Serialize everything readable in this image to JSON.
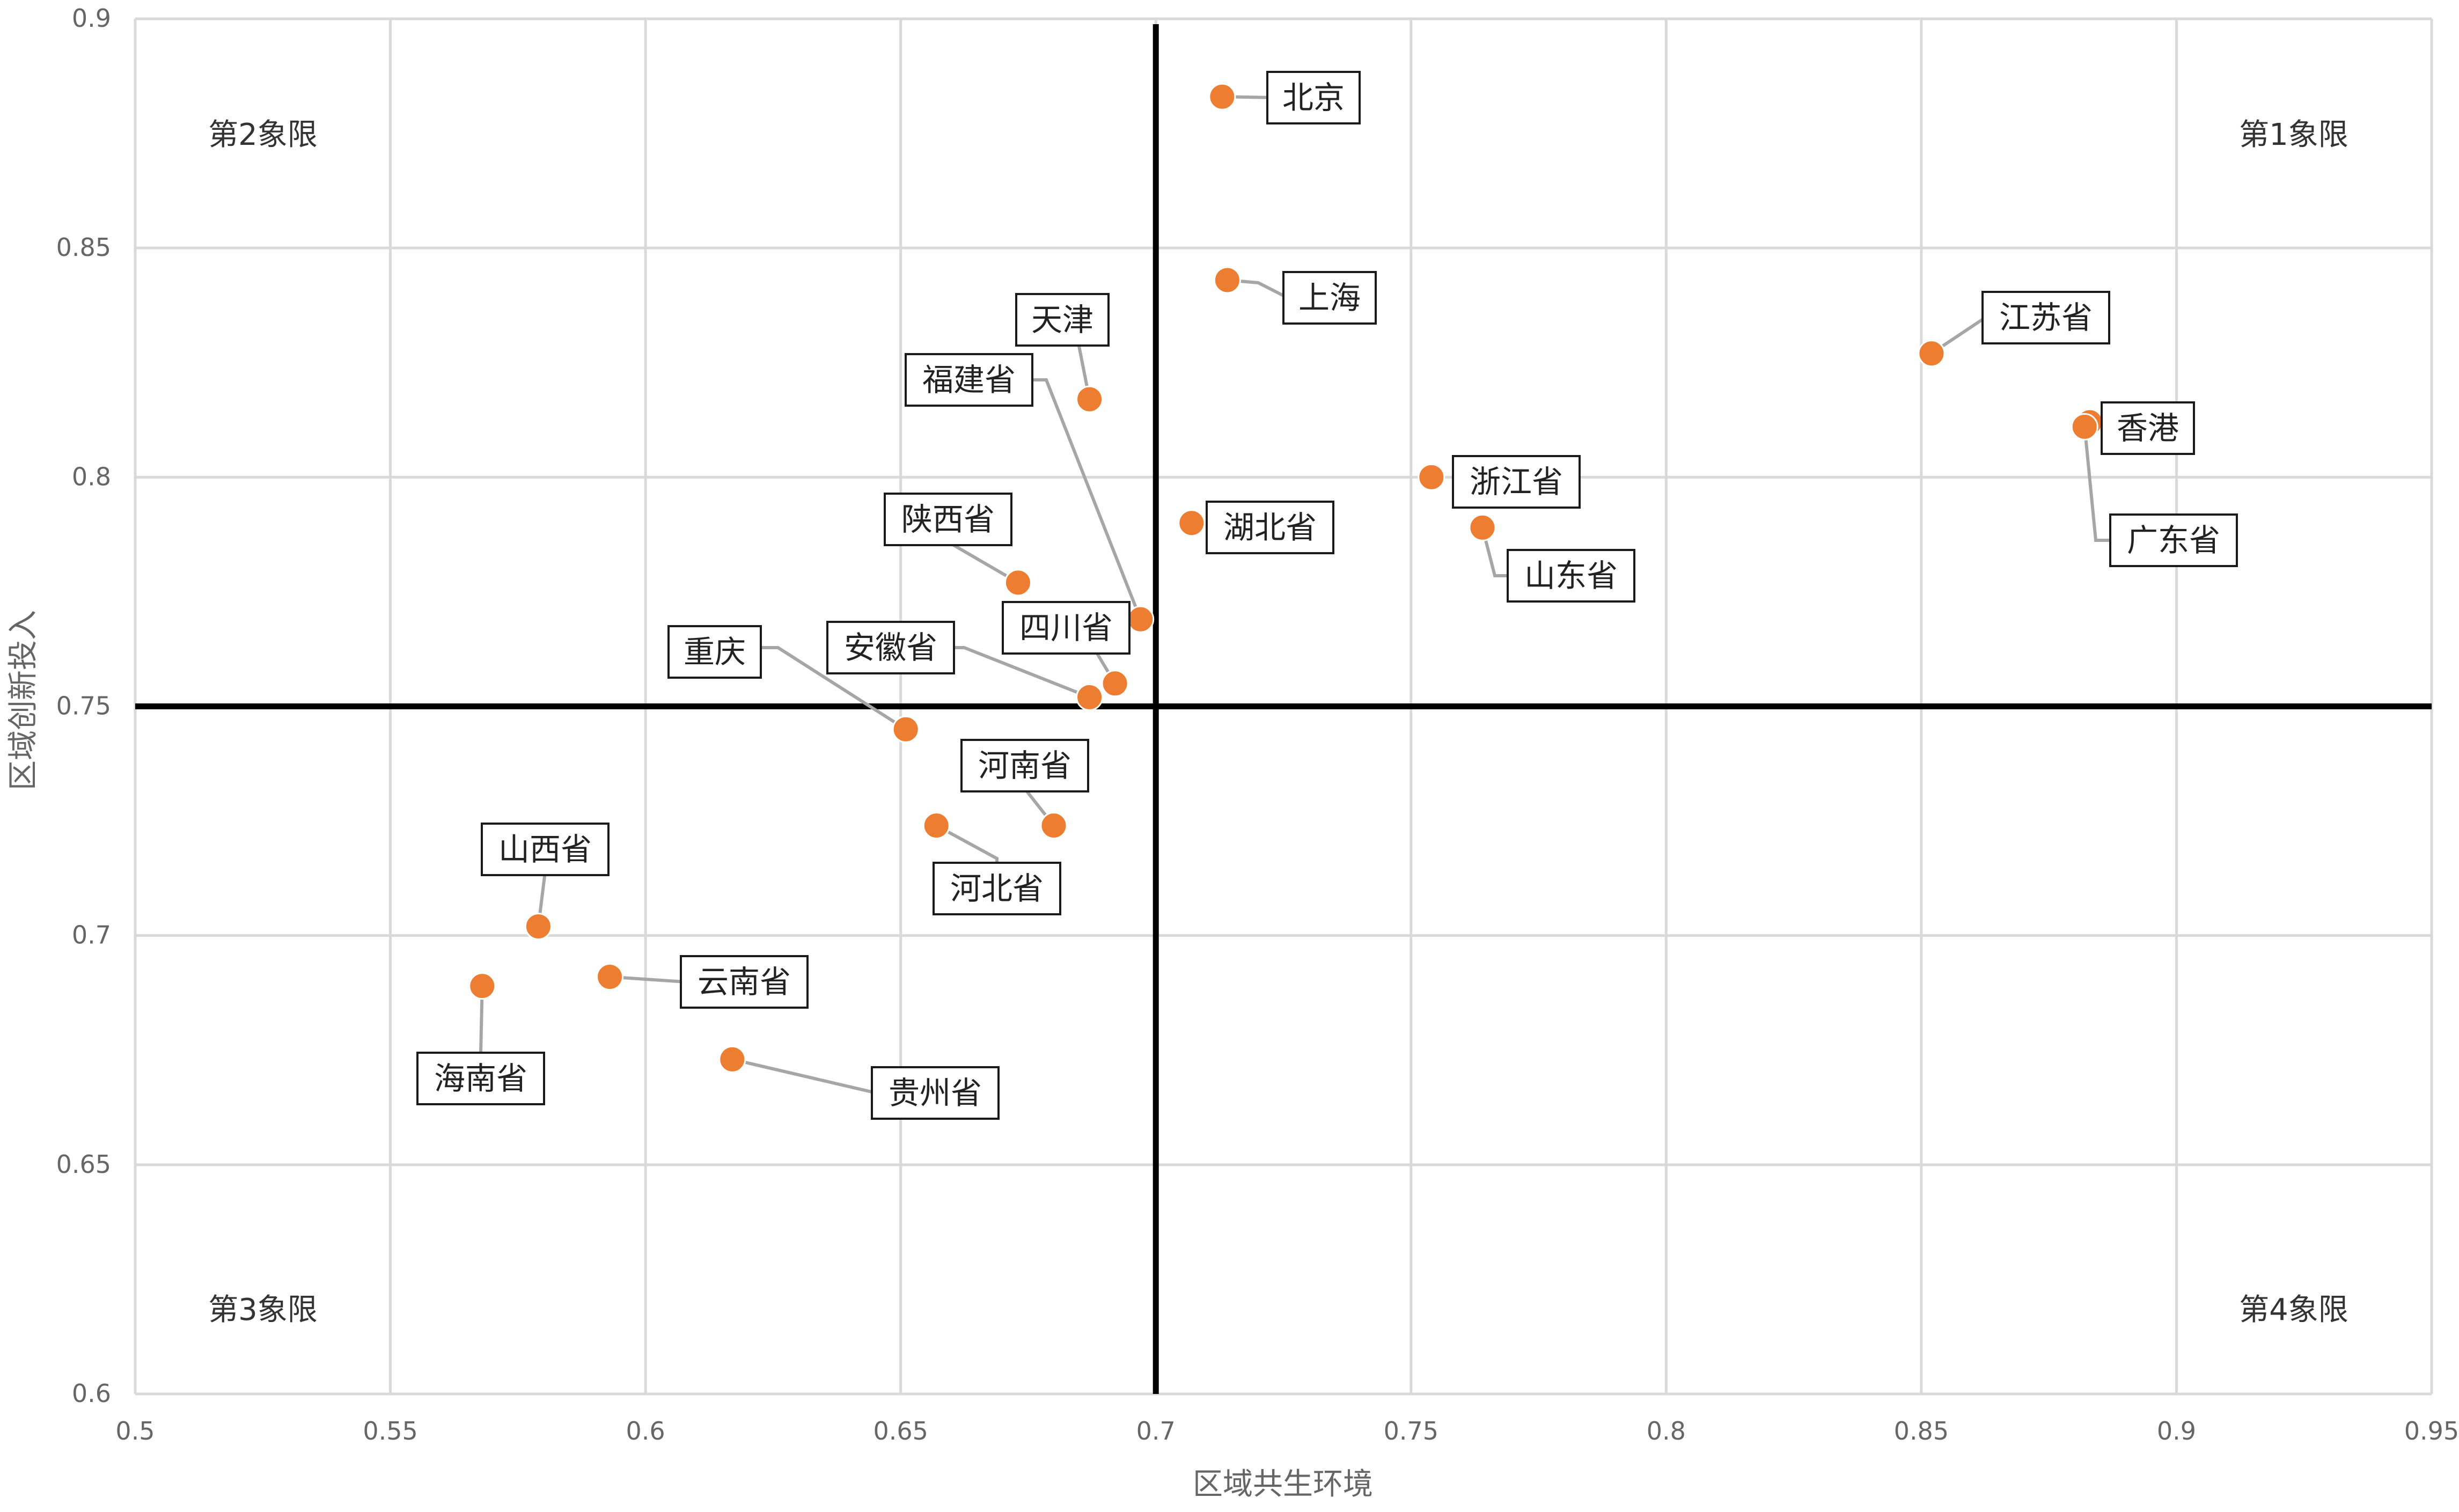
{
  "chart_data": {
    "type": "scatter",
    "title": "",
    "xlabel": "区域共生环境",
    "ylabel": "区域创新投入",
    "xlim": [
      0.5,
      0.95
    ],
    "ylim": [
      0.6,
      0.9
    ],
    "x_ticks": [
      "0.5",
      "0.55",
      "0.6",
      "0.65",
      "0.7",
      "0.75",
      "0.8",
      "0.85",
      "0.9",
      "0.95"
    ],
    "y_ticks": [
      "0.6",
      "0.65",
      "0.7",
      "0.75",
      "0.8",
      "0.85",
      "0.9"
    ],
    "grid": true,
    "divider": {
      "x": 0.7,
      "y": 0.75
    },
    "quadrants": [
      "第1象限",
      "第2象限",
      "第3象限",
      "第4象限"
    ],
    "marker_color": "#ED7D31",
    "leader_color": "#A6A6A6",
    "points": [
      {
        "label": "北京",
        "x": 0.713,
        "y": 0.883
      },
      {
        "label": "上海",
        "x": 0.714,
        "y": 0.843
      },
      {
        "label": "天津",
        "x": 0.687,
        "y": 0.817
      },
      {
        "label": "福建省",
        "x": 0.697,
        "y": 0.769
      },
      {
        "label": "陕西省",
        "x": 0.673,
        "y": 0.777
      },
      {
        "label": "四川省",
        "x": 0.692,
        "y": 0.755
      },
      {
        "label": "安徽省",
        "x": 0.687,
        "y": 0.752
      },
      {
        "label": "重庆",
        "x": 0.651,
        "y": 0.745
      },
      {
        "label": "湖北省",
        "x": 0.707,
        "y": 0.79
      },
      {
        "label": "浙江省",
        "x": 0.754,
        "y": 0.8
      },
      {
        "label": "山东省",
        "x": 0.764,
        "y": 0.789
      },
      {
        "label": "江苏省",
        "x": 0.852,
        "y": 0.827
      },
      {
        "label": "香港",
        "x": 0.883,
        "y": 0.812
      },
      {
        "label": "广东省",
        "x": 0.882,
        "y": 0.811
      },
      {
        "label": "河南省",
        "x": 0.68,
        "y": 0.724
      },
      {
        "label": "河北省",
        "x": 0.657,
        "y": 0.724
      },
      {
        "label": "山西省",
        "x": 0.579,
        "y": 0.702
      },
      {
        "label": "云南省",
        "x": 0.593,
        "y": 0.691
      },
      {
        "label": "海南省",
        "x": 0.568,
        "y": 0.689
      },
      {
        "label": "贵州省",
        "x": 0.617,
        "y": 0.673
      }
    ]
  }
}
